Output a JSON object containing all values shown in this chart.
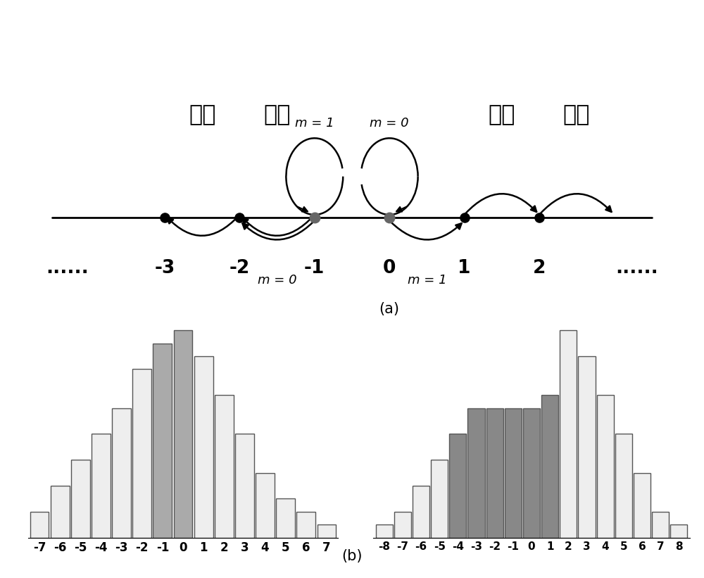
{
  "number_line": {
    "dots_x": [
      -3,
      -2,
      -1,
      0,
      1,
      2
    ],
    "dark_dots": [
      -1,
      0
    ],
    "x_labels": [
      "......",
      "-3",
      "-2",
      "-1",
      "0",
      "1",
      "2",
      "......"
    ],
    "x_label_pos": [
      -4.3,
      -3,
      -2,
      -1,
      0,
      1,
      2,
      3.3
    ]
  },
  "hist_left": {
    "x": [
      -7,
      -6,
      -5,
      -4,
      -3,
      -2,
      -1,
      0,
      1,
      2,
      3,
      4,
      5,
      6,
      7
    ],
    "heights": [
      2,
      4,
      6,
      8,
      10,
      13,
      15,
      16,
      14,
      11,
      8,
      5,
      3,
      2,
      1
    ],
    "gray_bars": [
      -1,
      0
    ],
    "gray_color": "#aaaaaa",
    "white_color": "#eeeeee"
  },
  "hist_right": {
    "x": [
      -8,
      -7,
      -6,
      -5,
      -4,
      -3,
      -2,
      -1,
      0,
      1,
      2,
      3,
      4,
      5,
      6,
      7,
      8
    ],
    "heights": [
      1,
      2,
      4,
      6,
      8,
      10,
      10,
      10,
      10,
      11,
      16,
      14,
      11,
      8,
      5,
      2,
      1
    ],
    "gray_bars": [
      -4,
      -3,
      -2,
      -1,
      0,
      1
    ],
    "gray_color": "#888888",
    "white_color": "#eeeeee"
  },
  "label_a": "(a)",
  "label_b": "(b)",
  "ping_yi": "平移",
  "m0": "m = 0",
  "m1": "m = 1"
}
